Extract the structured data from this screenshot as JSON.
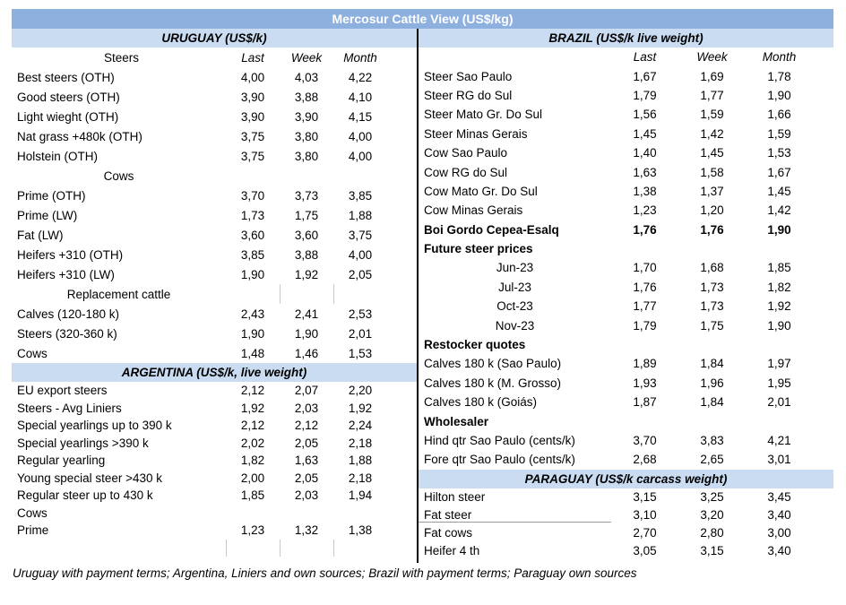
{
  "title": "Mercosur Cattle View (US$/kg)",
  "value_columns": [
    "Last",
    "Week",
    "Month"
  ],
  "footnote": "Uruguay with payment terms; Argentina, Liniers and own sources; Brazil with payment terms; Paraguay own sources",
  "colors": {
    "title_bg": "#8DB0DF",
    "title_text": "#FFFFFF",
    "section_header_bg": "#C9DCF2",
    "divider": "#000000",
    "text": "#000000"
  },
  "sections": {
    "uruguay": {
      "header": "URUGUAY (US$/k)",
      "label_header": "Steers",
      "rows": [
        {
          "label": "Best steers (OTH)",
          "values": [
            "4,00",
            "4,03",
            "4,22"
          ]
        },
        {
          "label": "Good steers (OTH)",
          "values": [
            "3,90",
            "3,88",
            "4,10"
          ]
        },
        {
          "label": "Light wieght (OTH)",
          "values": [
            "3,90",
            "3,90",
            "4,15"
          ]
        },
        {
          "label": "Nat grass +480k (OTH)",
          "values": [
            "3,75",
            "3,80",
            "4,00"
          ]
        },
        {
          "label": "Holstein (OTH)",
          "values": [
            "3,75",
            "3,80",
            "4,00"
          ]
        },
        {
          "label": "Cows",
          "align": "center"
        },
        {
          "label": "Prime (OTH)",
          "values": [
            "3,70",
            "3,73",
            "3,85"
          ]
        },
        {
          "label": "Prime (LW)",
          "values": [
            "1,73",
            "1,75",
            "1,88"
          ]
        },
        {
          "label": "Fat (LW)",
          "values": [
            "3,60",
            "3,60",
            "3,75"
          ]
        },
        {
          "label": "Heifers +310 (OTH)",
          "values": [
            "3,85",
            "3,88",
            "4,00"
          ]
        },
        {
          "label": "Heifers +310 (LW)",
          "values": [
            "1,90",
            "1,92",
            "2,05"
          ]
        },
        {
          "label": "Replacement cattle",
          "align": "center",
          "ticks": [
            2,
            3
          ]
        },
        {
          "label": "Calves (120-180 k)",
          "values": [
            "2,43",
            "2,41",
            "2,53"
          ]
        },
        {
          "label": "Steers (320-360 k)",
          "values": [
            "1,90",
            "1,90",
            "2,01"
          ]
        },
        {
          "label": "Cows",
          "values": [
            "1,48",
            "1,46",
            "1,53"
          ]
        }
      ]
    },
    "argentina": {
      "header": "ARGENTINA (US$/k, live weight)",
      "rows": [
        {
          "label": "EU export steers",
          "values": [
            "2,12",
            "2,07",
            "2,20"
          ]
        },
        {
          "label": "Steers - Avg Liniers",
          "values": [
            "1,92",
            "2,03",
            "1,92"
          ]
        },
        {
          "label": "Special yearlings up to 390 k",
          "values": [
            "2,12",
            "2,12",
            "2,24"
          ]
        },
        {
          "label": "Special yearlings >390 k",
          "values": [
            "2,02",
            "2,05",
            "2,18"
          ]
        },
        {
          "label": "Regular yearling",
          "values": [
            "1,82",
            "1,63",
            "1,88"
          ]
        },
        {
          "label": "Young special steer >430 k",
          "values": [
            "2,00",
            "2,05",
            "2,18"
          ]
        },
        {
          "label": "Regular steer up to 430 k",
          "values": [
            "1,85",
            "2,03",
            "1,94"
          ]
        },
        {
          "label": "Cows"
        },
        {
          "label": "Prime",
          "values": [
            "1,23",
            "1,32",
            "1,38"
          ]
        },
        {
          "label": "",
          "ticks": [
            1,
            2,
            3
          ]
        }
      ]
    },
    "brazil": {
      "header": "BRAZIL  (US$/k live weight)",
      "label_header": "",
      "rows": [
        {
          "label": "Steer Sao Paulo",
          "values": [
            "1,67",
            "1,69",
            "1,78"
          ]
        },
        {
          "label": "Steer RG do Sul",
          "values": [
            "1,79",
            "1,77",
            "1,90"
          ]
        },
        {
          "label": "Steer Mato Gr. Do Sul",
          "values": [
            "1,56",
            "1,59",
            "1,66"
          ]
        },
        {
          "label": "Steer Minas Gerais",
          "values": [
            "1,45",
            "1,42",
            "1,59"
          ]
        },
        {
          "label": "Cow Sao Paulo",
          "values": [
            "1,40",
            "1,45",
            "1,53"
          ]
        },
        {
          "label": "Cow RG do Sul",
          "values": [
            "1,63",
            "1,58",
            "1,67"
          ]
        },
        {
          "label": "Cow Mato Gr. Do Sul",
          "values": [
            "1,38",
            "1,37",
            "1,45"
          ]
        },
        {
          "label": "Cow Minas Gerais",
          "values": [
            "1,23",
            "1,20",
            "1,42"
          ]
        },
        {
          "label": "Boi Gordo Cepea-Esalq",
          "values": [
            "1,76",
            "1,76",
            "1,90"
          ],
          "bold": true
        },
        {
          "label": "Future steer prices",
          "bold": true
        },
        {
          "label": "Jun-23",
          "align": "center",
          "values": [
            "1,70",
            "1,68",
            "1,85"
          ]
        },
        {
          "label": "Jul-23",
          "align": "center",
          "values": [
            "1,76",
            "1,73",
            "1,82"
          ]
        },
        {
          "label": "Oct-23",
          "align": "center",
          "values": [
            "1,77",
            "1,73",
            "1,92"
          ]
        },
        {
          "label": "Nov-23",
          "align": "center",
          "values": [
            "1,79",
            "1,75",
            "1,90"
          ]
        },
        {
          "label": "Restocker quotes",
          "bold": true
        },
        {
          "label": "Calves 180 k (Sao Paulo)",
          "values": [
            "1,89",
            "1,84",
            "1,97"
          ]
        },
        {
          "label": "Calves 180 k (M. Grosso)",
          "values": [
            "1,93",
            "1,96",
            "1,95"
          ]
        },
        {
          "label": "Calves 180 k (Goiás)",
          "values": [
            "1,87",
            "1,84",
            "2,01"
          ]
        },
        {
          "label": "Wholesaler",
          "bold": true
        },
        {
          "label": "Hind qtr Sao Paulo (cents/k)",
          "values": [
            "3,70",
            "3,83",
            "4,21"
          ]
        },
        {
          "label": "Fore qtr Sao Paulo (cents/k)",
          "values": [
            "2,68",
            "2,65",
            "3,01"
          ]
        }
      ]
    },
    "paraguay": {
      "header": "PARAGUAY  (US$/k carcass weight)",
      "rows": [
        {
          "label": "Hilton steer",
          "values": [
            "3,15",
            "3,25",
            "3,45"
          ]
        },
        {
          "label": "Fat steer",
          "values": [
            "3,10",
            "3,20",
            "3,40"
          ],
          "underline": true
        },
        {
          "label": "Fat cows",
          "values": [
            "2,70",
            "2,80",
            "3,00"
          ]
        },
        {
          "label": "Heifer 4 th",
          "values": [
            "3,05",
            "3,15",
            "3,40"
          ]
        }
      ]
    }
  }
}
